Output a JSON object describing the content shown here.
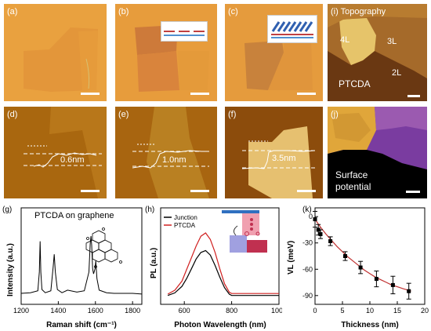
{
  "panels": {
    "a": "(a)",
    "b": "(b)",
    "c": "(c)",
    "d": "(d)",
    "e": "(e)",
    "f": "(f)",
    "i": "(i) Topography",
    "j": "(j)",
    "g": "(g)",
    "h": "(h)",
    "k": "(k)"
  },
  "topography": {
    "l4": "4L",
    "l3": "3L",
    "l2": "2L",
    "ptcda": "PTCDA"
  },
  "surface_potential": {
    "line1": "Surface",
    "line2": "potential"
  },
  "heights": {
    "d": "0.6nm",
    "e": "1.0nm",
    "f": "3.5nm"
  },
  "colors": {
    "optical_bg": "#e8a040",
    "afm_bg": "#a8640c",
    "raman_line": "#000000",
    "pl_junction": "#000000",
    "pl_ptcda": "#d02020",
    "fit_line": "#c03030"
  },
  "chart_data": [
    {
      "type": "line",
      "id": "g",
      "title": "PTCDA on graphene",
      "xlabel": "Raman shift (cm⁻¹)",
      "ylabel": "Intensity (a.u.)",
      "xlim": [
        1200,
        1850
      ],
      "xticks": [
        "1200",
        "1400",
        "1600",
        "1800"
      ],
      "x": [
        1200,
        1250,
        1290,
        1298,
        1302,
        1306,
        1312,
        1330,
        1360,
        1372,
        1378,
        1384,
        1395,
        1420,
        1450,
        1500,
        1540,
        1565,
        1572,
        1576,
        1580,
        1585,
        1590,
        1598,
        1602,
        1608,
        1620,
        1660,
        1700,
        1750,
        1800,
        1850
      ],
      "y": [
        0.12,
        0.13,
        0.16,
        0.45,
        0.92,
        0.45,
        0.18,
        0.13,
        0.16,
        0.52,
        0.72,
        0.45,
        0.18,
        0.13,
        0.17,
        0.14,
        0.16,
        0.45,
        0.88,
        1.0,
        0.86,
        0.5,
        0.42,
        0.5,
        0.62,
        0.35,
        0.17,
        0.13,
        0.12,
        0.12,
        0.12,
        0.11
      ]
    },
    {
      "type": "line",
      "id": "h",
      "xlabel": "Photon Wavelength (nm)",
      "ylabel": "PL (a.u.)",
      "xlim": [
        500,
        1000
      ],
      "xticks": [
        "600",
        "800",
        "1000"
      ],
      "series": [
        {
          "name": "Junction",
          "x": [
            530,
            560,
            590,
            610,
            630,
            650,
            670,
            690,
            710,
            730,
            750,
            770,
            790,
            800,
            850,
            900,
            950,
            1000
          ],
          "y": [
            0.04,
            0.08,
            0.18,
            0.3,
            0.45,
            0.6,
            0.7,
            0.73,
            0.66,
            0.5,
            0.32,
            0.16,
            0.06,
            0.04,
            0.04,
            0.04,
            0.04,
            0.04
          ]
        },
        {
          "name": "PTCDA",
          "x": [
            530,
            560,
            590,
            610,
            630,
            650,
            670,
            690,
            710,
            730,
            750,
            770,
            790,
            800,
            850,
            900,
            950,
            1000
          ],
          "y": [
            0.06,
            0.12,
            0.26,
            0.44,
            0.62,
            0.8,
            0.95,
            1.0,
            0.9,
            0.7,
            0.45,
            0.22,
            0.09,
            0.07,
            0.07,
            0.07,
            0.07,
            0.07
          ]
        }
      ]
    },
    {
      "type": "scatter",
      "id": "k",
      "xlabel": "Thickness (nm)",
      "ylabel": "VL (meV)",
      "xlim": [
        0,
        20
      ],
      "ylim": [
        -100,
        10
      ],
      "xticks": [
        "0",
        "5",
        "10",
        "15",
        "20"
      ],
      "yticks": [
        "0",
        "-30",
        "-60",
        "-90"
      ],
      "points": [
        {
          "x": 0,
          "y": -3,
          "err": 9
        },
        {
          "x": 0.6,
          "y": -15,
          "err": 6
        },
        {
          "x": 1.0,
          "y": -20,
          "err": 5
        },
        {
          "x": 2.8,
          "y": -28,
          "err": 5
        },
        {
          "x": 5.5,
          "y": -45,
          "err": 5
        },
        {
          "x": 8.3,
          "y": -58,
          "err": 7
        },
        {
          "x": 11.2,
          "y": -71,
          "err": 9
        },
        {
          "x": 14.2,
          "y": -78,
          "err": 10
        },
        {
          "x": 17.1,
          "y": -85,
          "err": 9
        }
      ],
      "fit": {
        "x": [
          0,
          1,
          2,
          3,
          4,
          5,
          6,
          7,
          8,
          9,
          10,
          11,
          12,
          13,
          14,
          15,
          16,
          17,
          17.5
        ],
        "y": [
          -3,
          -12,
          -20,
          -27,
          -34,
          -40,
          -46,
          -51,
          -56,
          -61,
          -65,
          -69,
          -72,
          -75,
          -78,
          -80,
          -82,
          -84,
          -85
        ]
      }
    }
  ]
}
